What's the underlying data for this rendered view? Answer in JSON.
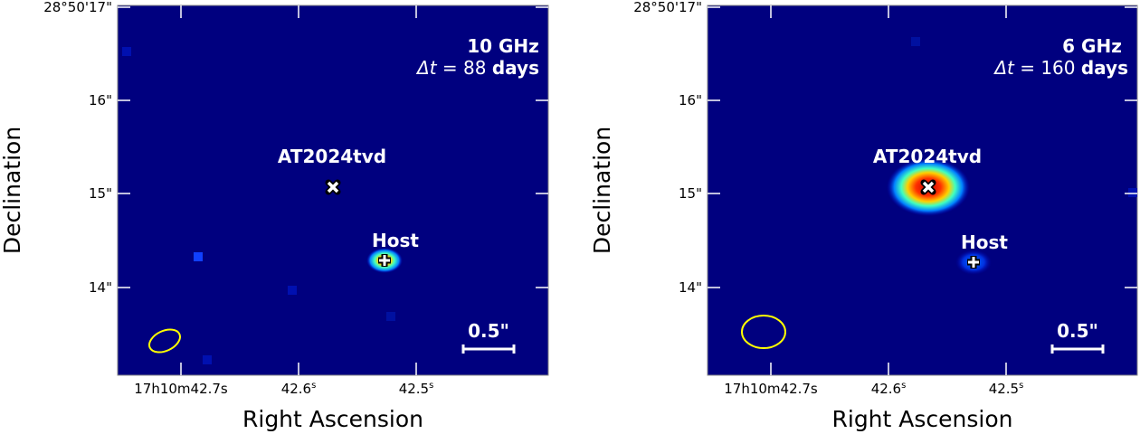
{
  "chart_data": [
    {
      "type": "heatmap",
      "frequency_label": "10 GHz",
      "delta_t": {
        "symbol": "Δt",
        "eq": " = 88 ",
        "unit": "days"
      },
      "xlabel": "Right Ascension",
      "ylabel": "Declination",
      "xticks": [
        {
          "label": "17h10m42.7s",
          "parts": [
            "17",
            "h",
            "10",
            "m",
            "42.7",
            "s"
          ]
        },
        {
          "label": "42.6s",
          "parts": [
            "42.6",
            "s"
          ]
        },
        {
          "label": "42.5s",
          "parts": [
            "42.5",
            "s"
          ]
        }
      ],
      "yticks": [
        "28°50'17\"",
        "16\"",
        "15\"",
        "14\""
      ],
      "sources": [
        {
          "name": "AT2024tvd",
          "marker": "x",
          "peak_color": "#000080"
        },
        {
          "name": "Host",
          "marker": "+",
          "peak_color": "#ff3000"
        }
      ],
      "scale_bar": "0.5\"",
      "beam_color": "#ffff00",
      "colormap": "jet",
      "background_color": "#00007f"
    },
    {
      "type": "heatmap",
      "frequency_label": "6 GHz",
      "delta_t": {
        "symbol": "Δt",
        "eq": " = 160 ",
        "unit": "days"
      },
      "xlabel": "Right Ascension",
      "ylabel": "Declination",
      "xticks": [
        {
          "label": "17h10m42.7s",
          "parts": [
            "17",
            "h",
            "10",
            "m",
            "42.7",
            "s"
          ]
        },
        {
          "label": "42.6s",
          "parts": [
            "42.6",
            "s"
          ]
        },
        {
          "label": "42.5s",
          "parts": [
            "42.5",
            "s"
          ]
        }
      ],
      "yticks": [
        "28°50'17\"",
        "16\"",
        "15\"",
        "14\""
      ],
      "sources": [
        {
          "name": "AT2024tvd",
          "marker": "x",
          "peak_color": "#ff1000"
        },
        {
          "name": "Host",
          "marker": "+",
          "peak_color": "#0060ff"
        }
      ],
      "scale_bar": "0.5\"",
      "beam_color": "#ffff00",
      "colormap": "jet",
      "background_color": "#00007f"
    }
  ]
}
